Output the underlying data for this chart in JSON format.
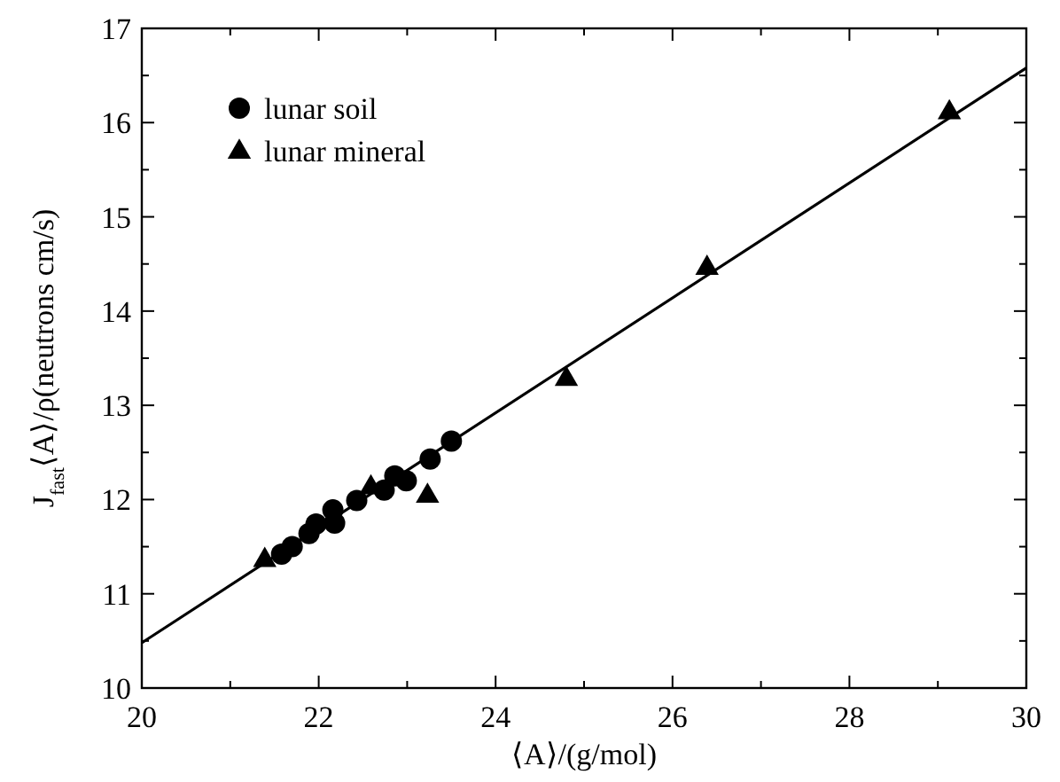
{
  "chart_data": {
    "type": "scatter",
    "xlabel": "⟨A⟩/(g/mol)",
    "ylabel": "J$_{fast}$⟨A⟩/ρ(neutrons cm/s)",
    "xlim": [
      20,
      30
    ],
    "xticks": [
      20,
      {
        "value": 21,
        "label": null
      },
      22,
      {
        "value": 23,
        "label": null
      },
      24,
      {
        "value": 25,
        "label": null
      },
      26,
      {
        "value": 27,
        "label": null
      },
      28,
      {
        "value": 29,
        "label": null
      },
      30
    ],
    "ylim": [
      10,
      17
    ],
    "yticks": [
      10,
      {
        "value": 10.5,
        "label": null
      },
      11,
      {
        "value": 11.5,
        "label": null
      },
      12,
      {
        "value": 12.5,
        "label": null
      },
      13,
      {
        "value": 13.5,
        "label": null
      },
      14,
      {
        "value": 14.5,
        "label": null
      },
      15,
      {
        "value": 15.5,
        "label": null
      },
      16,
      {
        "value": 16.5,
        "label": null
      },
      17
    ],
    "legend": "top left",
    "grid": false,
    "series": [
      {
        "name": "lunar soil",
        "color": "#000000",
        "marker": "circle",
        "x": [
          21.58,
          21.7,
          21.89,
          21.97,
          22.16,
          22.18,
          22.43,
          22.74,
          22.86,
          22.99,
          23.26,
          23.5
        ],
        "values": [
          11.42,
          11.5,
          11.64,
          11.74,
          11.89,
          11.75,
          11.99,
          12.1,
          12.25,
          12.2,
          12.43,
          12.62
        ]
      },
      {
        "name": "lunar mineral",
        "color": "#000000",
        "marker": "triangle",
        "x": [
          21.39,
          22.59,
          23.23,
          24.8,
          26.39,
          29.13
        ],
        "values": [
          11.37,
          12.14,
          12.05,
          13.29,
          14.47,
          16.12
        ]
      },
      {
        "type": "line",
        "color": "#000000",
        "marker": "none",
        "line_style": "solid",
        "x": [
          20,
          30
        ],
        "values": [
          10.48,
          16.58
        ]
      }
    ]
  }
}
